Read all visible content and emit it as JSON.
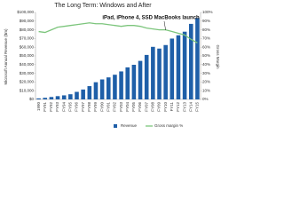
{
  "chart_data": {
    "type": "bar_line",
    "title": "The Long Term: Windows and After",
    "annotation": "iPad, iPhone 4, SSD MacBooks launch",
    "y_label": "Microsoft Annual Revenue ($m)",
    "y2_label": "Gross Margin",
    "categories": [
      "1990",
      "FY91",
      "FY92",
      "FY93",
      "FY94",
      "FY95",
      "FY96",
      "FY97",
      "FY98",
      "FY99",
      "FY00",
      "FY01",
      "FY02",
      "FY03",
      "FY04",
      "FY05",
      "FY06",
      "FY07",
      "FY08",
      "FY09",
      "FY10",
      "FY11",
      "FY12",
      "FY13",
      "FY14",
      "FY15"
    ],
    "series": [
      {
        "name": "Revenue",
        "type": "bar",
        "color": "#1f5fa8",
        "values": [
          1183,
          1843,
          2759,
          3753,
          4649,
          5937,
          8671,
          11358,
          15262,
          19747,
          22956,
          25296,
          28365,
          32187,
          36835,
          39788,
          44282,
          51122,
          60420,
          58437,
          62484,
          69943,
          73723,
          77849,
          86833,
          93580
        ]
      },
      {
        "name": "Gross margin %",
        "type": "line",
        "axis": "y2",
        "color": "#7cc57c",
        "values": [
          78,
          77,
          80,
          83,
          84,
          85,
          86,
          87,
          88,
          87,
          87,
          86,
          85,
          84,
          85,
          85,
          84,
          82,
          81,
          80,
          80,
          78,
          76,
          74,
          69,
          65
        ]
      }
    ],
    "ylim": [
      0,
      100000
    ],
    "yticks": [
      {
        "value": 0,
        "label": "$0"
      },
      {
        "value": 10000,
        "label": "$10,000"
      },
      {
        "value": 20000,
        "label": "$20,000"
      },
      {
        "value": 30000,
        "label": "$30,000"
      },
      {
        "value": 40000,
        "label": "$40,000"
      },
      {
        "value": 50000,
        "label": "$50,000"
      },
      {
        "value": 60000,
        "label": "$60,000"
      },
      {
        "value": 70000,
        "label": "$70,000"
      },
      {
        "value": 80000,
        "label": "$80,000"
      },
      {
        "value": 90000,
        "label": "$90,000"
      },
      {
        "value": 100000,
        "label": "$100,000"
      }
    ],
    "y2lim": [
      0,
      100
    ],
    "y2ticks": [
      {
        "value": 0,
        "label": "0%"
      },
      {
        "value": 10,
        "label": "10%"
      },
      {
        "value": 20,
        "label": "20%"
      },
      {
        "value": 30,
        "label": "30%"
      },
      {
        "value": 40,
        "label": "40%"
      },
      {
        "value": 50,
        "label": "50%"
      },
      {
        "value": 60,
        "label": "60%"
      },
      {
        "value": 70,
        "label": "70%"
      },
      {
        "value": 80,
        "label": "80%"
      },
      {
        "value": 90,
        "label": "90%"
      },
      {
        "value": 100,
        "label": "100%"
      }
    ],
    "grid": false,
    "legend": "bottom"
  }
}
